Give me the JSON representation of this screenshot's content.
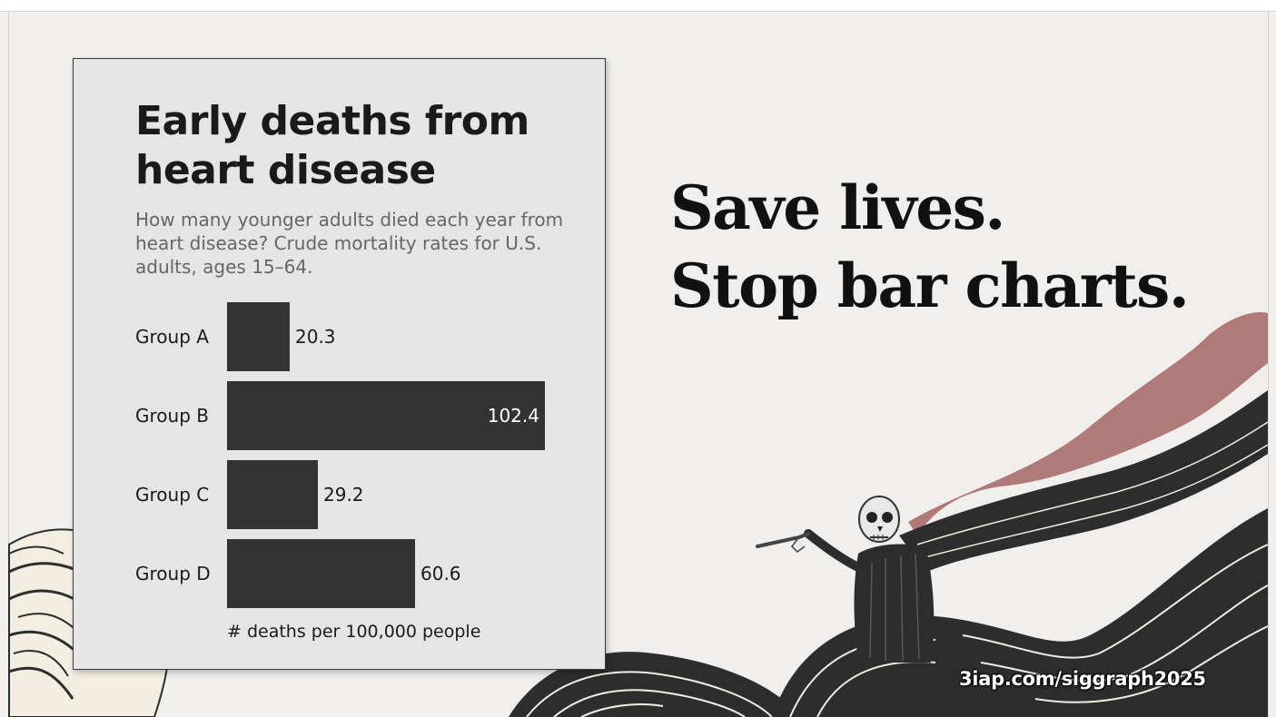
{
  "chart_data": {
    "type": "bar",
    "orientation": "horizontal",
    "title": "Early deaths from heart disease",
    "subtitle": "How many younger adults died each year from heart disease? Crude mortality rates for U.S. adults, ages 15–64.",
    "categories": [
      "Group A",
      "Group B",
      "Group C",
      "Group D"
    ],
    "values": [
      20.3,
      102.4,
      29.2,
      60.6
    ],
    "value_labels": [
      "20.3",
      "102.4",
      "29.2",
      "60.6"
    ],
    "xlabel": "# deaths per 100,000 people",
    "ylabel": "",
    "xlim": [
      0,
      102.4
    ],
    "bar_color": "#333333",
    "grid": false,
    "legend": "none"
  },
  "slide": {
    "headline_lines": [
      "Save lives.",
      "Stop bar charts."
    ],
    "url": "3iap.com/siggraph2025",
    "illustration": "grim-reaper-pointing-icon",
    "colors": {
      "background": "#f0efed",
      "card": "#e5e5e5",
      "wave_dark": "#2d2d2d",
      "wave_light": "#f3eee2",
      "accent_pink": "#b07a78"
    }
  }
}
